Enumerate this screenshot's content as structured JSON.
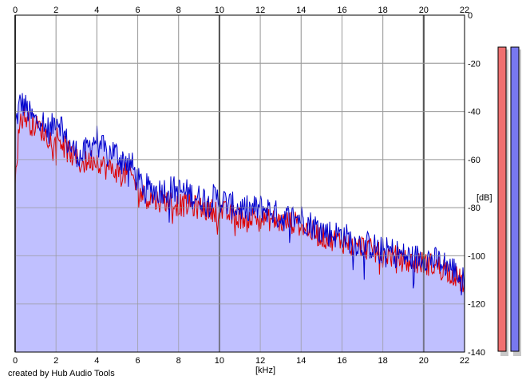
{
  "chart_data": {
    "type": "line",
    "xlabel": "[kHz]",
    "ylabel": "[dB]",
    "xlim": [
      0,
      22
    ],
    "ylim": [
      -140,
      0
    ],
    "x_ticks": [
      "0",
      "2",
      "4",
      "6",
      "8",
      "10",
      "12",
      "14",
      "16",
      "18",
      "20",
      "22"
    ],
    "y_ticks": [
      "0",
      "-20",
      "-40",
      "-60",
      "-80",
      "-100",
      "-120",
      "-140"
    ],
    "grid": true,
    "series": [
      {
        "color": "#0000cc",
        "x": [
          0,
          0.25,
          0.5,
          0.75,
          1,
          1.25,
          1.5,
          1.75,
          2,
          2.25,
          2.5,
          2.75,
          3,
          3.25,
          3.5,
          3.75,
          4,
          4.25,
          4.5,
          4.75,
          5,
          5.25,
          5.5,
          5.75,
          6,
          6.5,
          7,
          7.5,
          8,
          8.5,
          9,
          9.5,
          10,
          10.5,
          11,
          11.5,
          12,
          12.5,
          13,
          13.5,
          14,
          14.5,
          15,
          15.5,
          16,
          16.5,
          17,
          17.5,
          18,
          18.5,
          19,
          19.5,
          20,
          20.5,
          21,
          21.5,
          22
        ],
        "values": [
          -46,
          -36,
          -38,
          -42,
          -44,
          -42,
          -47,
          -48,
          -42,
          -45,
          -52,
          -55,
          -57,
          -59,
          -56,
          -53,
          -51,
          -55,
          -58,
          -56,
          -58,
          -60,
          -60,
          -63,
          -69,
          -72,
          -73,
          -72,
          -73,
          -74,
          -76,
          -76,
          -76,
          -79,
          -80,
          -81,
          -80,
          -81,
          -84,
          -84,
          -84,
          -87,
          -89,
          -91,
          -91,
          -94,
          -95,
          -96,
          -98,
          -98,
          -100,
          -101,
          -100,
          -102,
          -103,
          -106,
          -111
        ]
      },
      {
        "color": "#dd0000",
        "x": [
          0,
          0.25,
          0.5,
          0.75,
          1,
          1.25,
          1.5,
          1.75,
          2,
          2.25,
          2.5,
          2.75,
          3,
          3.25,
          3.5,
          3.75,
          4,
          4.25,
          4.5,
          4.75,
          5,
          5.25,
          5.5,
          5.75,
          6,
          6.5,
          7,
          7.5,
          8,
          8.5,
          9,
          9.5,
          10,
          10.5,
          11,
          11.5,
          12,
          12.5,
          13,
          13.5,
          14,
          14.5,
          15,
          15.5,
          16,
          16.5,
          17,
          17.5,
          18,
          18.5,
          19,
          19.5,
          20,
          20.5,
          21,
          21.5,
          22
        ],
        "values": [
          -66,
          -43,
          -42,
          -45,
          -46,
          -47,
          -50,
          -51,
          -50,
          -52,
          -56,
          -58,
          -60,
          -62,
          -61,
          -60,
          -60,
          -62,
          -64,
          -64,
          -65,
          -66,
          -66,
          -67,
          -73,
          -76,
          -77,
          -77,
          -79,
          -79,
          -80,
          -81,
          -81,
          -83,
          -84,
          -84,
          -84,
          -85,
          -86,
          -86,
          -87,
          -90,
          -92,
          -93,
          -94,
          -96,
          -96,
          -98,
          -100,
          -100,
          -102,
          -103,
          -103,
          -104,
          -105,
          -108,
          -112
        ]
      }
    ]
  },
  "meters": [
    {
      "color": "#f07070",
      "value_db": 0
    },
    {
      "color": "#7878f0",
      "value_db": 0
    }
  ],
  "footer": {
    "credit": "created by Hub Audio Tools"
  }
}
